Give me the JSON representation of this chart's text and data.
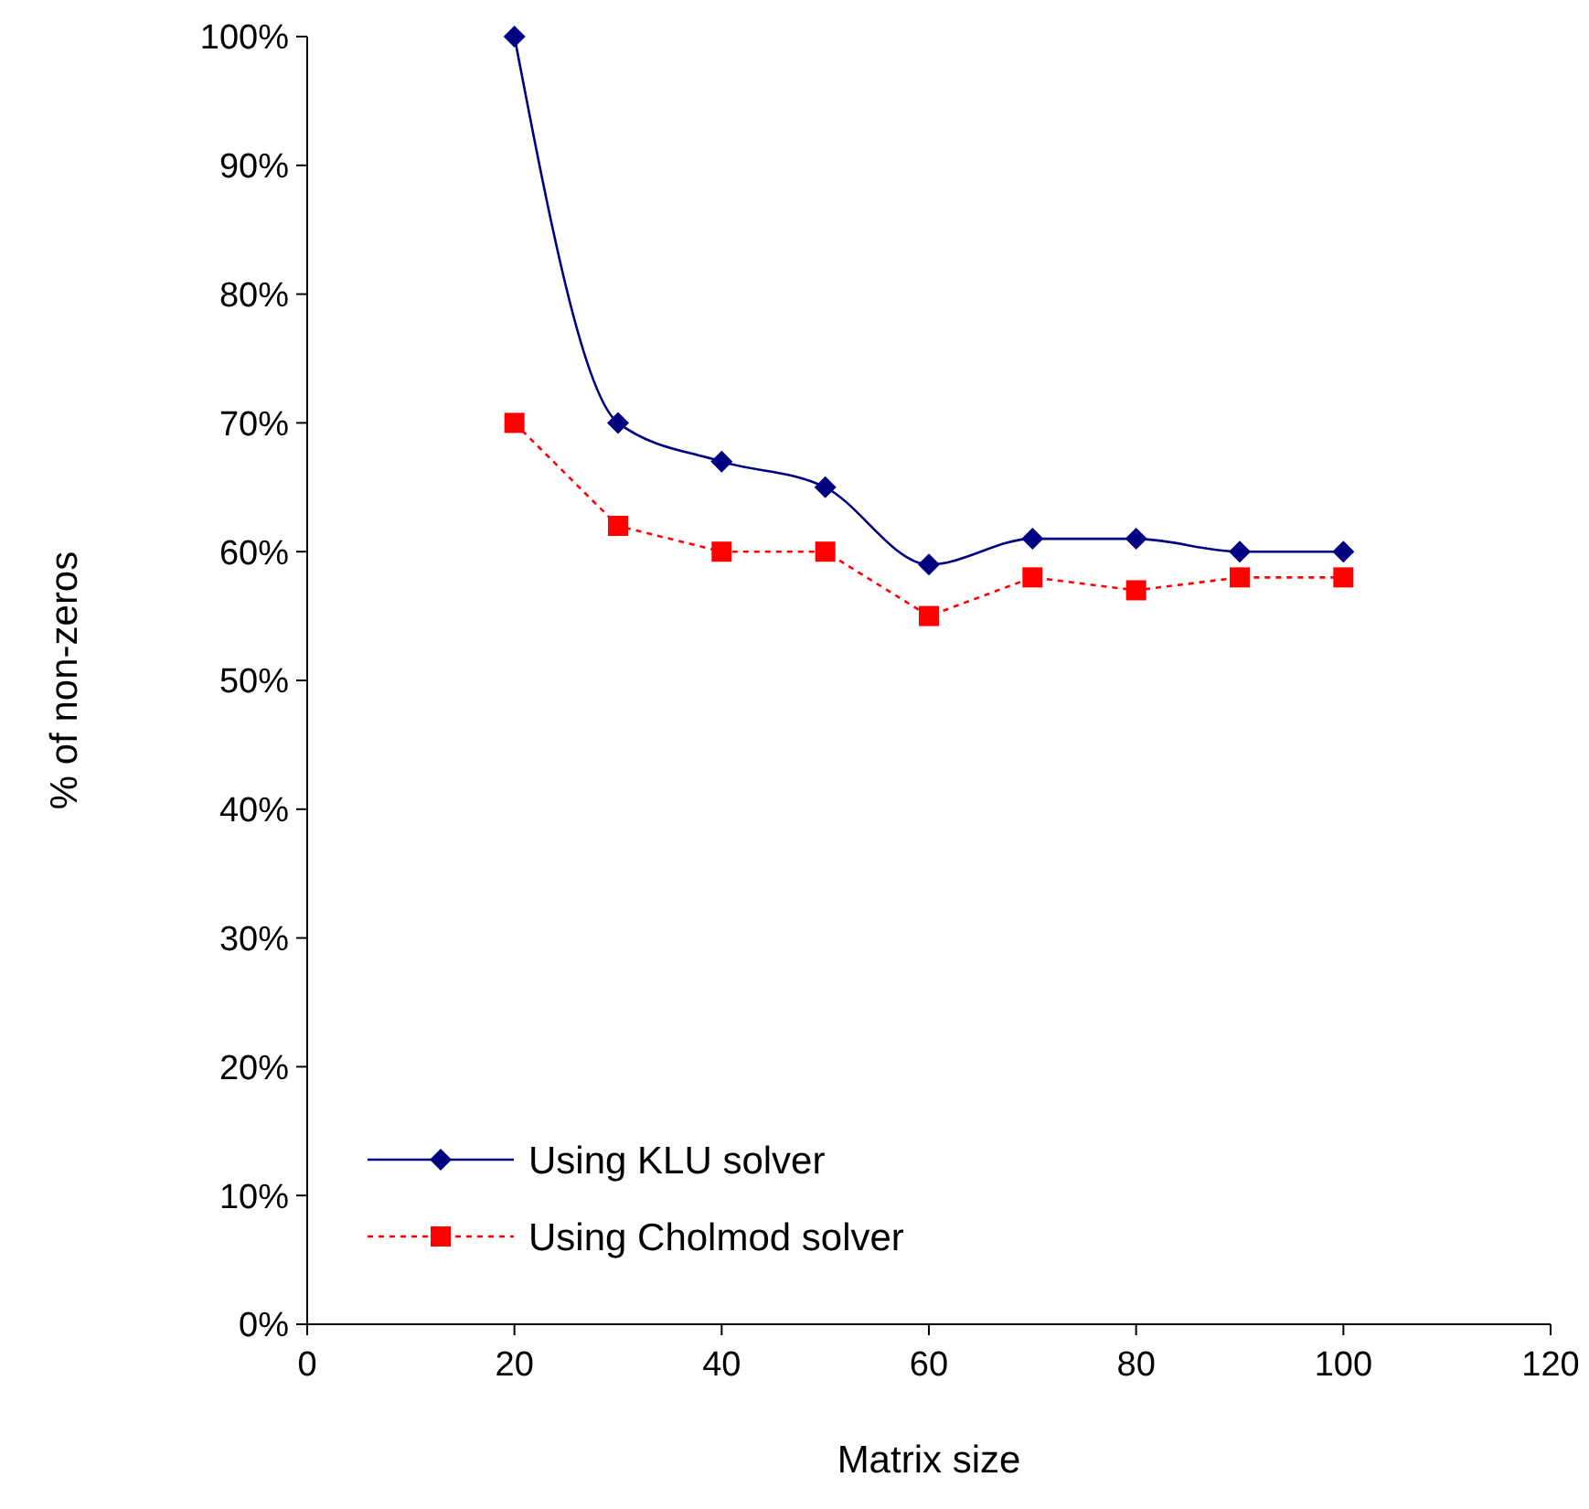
{
  "chart_data": {
    "type": "line",
    "xlabel": "Matrix size",
    "ylabel": "% of non-zeros",
    "x": [
      20,
      30,
      40,
      50,
      60,
      70,
      80,
      90,
      100
    ],
    "series": [
      {
        "name": "Using KLU solver",
        "color": "#000080",
        "marker": "diamond",
        "line_style": "solid",
        "values": [
          100,
          70,
          67,
          65,
          59,
          61,
          61,
          60,
          60
        ]
      },
      {
        "name": "Using Cholmod solver",
        "color": "#ff0000",
        "marker": "square",
        "line_style": "dotted",
        "values": [
          70,
          62,
          60,
          60,
          55,
          58,
          57,
          58,
          58
        ]
      }
    ],
    "xlim": [
      0,
      120
    ],
    "xticks": [
      0,
      20,
      40,
      60,
      80,
      100,
      120
    ],
    "ylim": [
      0,
      100
    ],
    "yticks": [
      {
        "value": 0,
        "label": "0%"
      },
      {
        "value": 10,
        "label": "10%"
      },
      {
        "value": 20,
        "label": "20%"
      },
      {
        "value": 30,
        "label": "30%"
      },
      {
        "value": 40,
        "label": "40%"
      },
      {
        "value": 50,
        "label": "50%"
      },
      {
        "value": 60,
        "label": "60%"
      },
      {
        "value": 70,
        "label": "70%"
      },
      {
        "value": 80,
        "label": "80%"
      },
      {
        "value": 90,
        "label": "90%"
      },
      {
        "value": 100,
        "label": "100%"
      }
    ],
    "grid": false,
    "legend": "bottom left"
  }
}
